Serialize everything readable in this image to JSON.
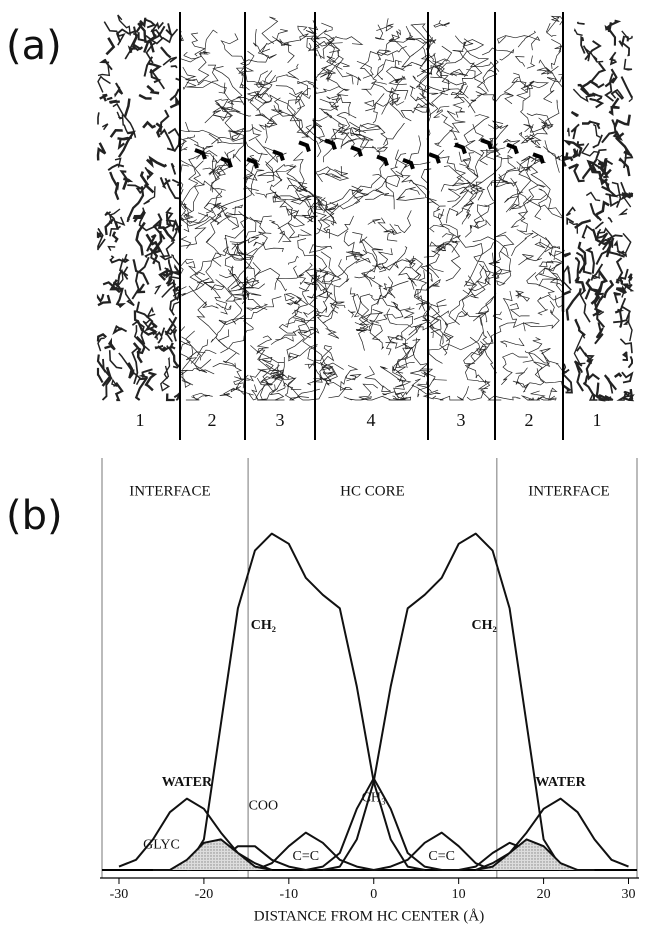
{
  "figure": {
    "panel_label": "(a)",
    "regions": [
      "1",
      "2",
      "3",
      "4",
      "3",
      "2",
      "1"
    ]
  },
  "chart_data": {
    "type": "line",
    "panel_label": "(b)",
    "x_label": "DISTANCE FROM HC CENTER (Å)",
    "annotations": [
      "INTERFACE",
      "HC CORE",
      "INTERFACE"
    ],
    "region_bounds": [
      -14.8,
      14.5
    ],
    "xlim": [
      -32,
      31
    ],
    "xticks": [
      -30,
      -20,
      -10,
      0,
      10,
      20,
      30
    ],
    "ylim": [
      0,
      103
    ],
    "line_color": "#111",
    "series": [
      {
        "name": "CH₂",
        "x": [
          -24,
          -22,
          -20,
          -18,
          -16,
          -14,
          -12,
          -10,
          -8,
          -6,
          -4,
          -2,
          0,
          2,
          4,
          6
        ],
        "values": [
          0,
          1,
          9,
          43,
          77,
          94,
          99,
          96,
          86,
          81,
          77,
          54,
          26,
          9,
          1,
          0
        ]
      },
      {
        "name": "CH₂",
        "x": [
          -6,
          -4,
          -2,
          0,
          2,
          4,
          6,
          8,
          10,
          12,
          14,
          16,
          18,
          20,
          22,
          24
        ],
        "values": [
          0,
          1,
          9,
          26,
          54,
          77,
          81,
          86,
          96,
          99,
          94,
          77,
          43,
          9,
          1,
          0
        ]
      },
      {
        "name": "WATER",
        "x": [
          -30,
          -28,
          -26,
          -24,
          -22,
          -20,
          -18,
          -16,
          -14,
          -12
        ],
        "values": [
          1,
          3,
          9,
          17,
          21,
          18,
          11,
          5,
          2,
          0
        ]
      },
      {
        "name": "WATER",
        "x": [
          12,
          14,
          16,
          18,
          20,
          22,
          24,
          26,
          28,
          30
        ],
        "values": [
          0,
          2,
          5,
          11,
          18,
          21,
          17,
          9,
          3,
          1
        ]
      },
      {
        "name": "CH₃",
        "x": [
          -8,
          -6,
          -4,
          -2,
          0,
          2,
          4,
          6,
          8
        ],
        "values": [
          0,
          1,
          5,
          18,
          27,
          18,
          5,
          1,
          0
        ]
      },
      {
        "name": "C=C",
        "x": [
          -16,
          -14,
          -12,
          -10,
          -8,
          -6,
          -4,
          -2,
          0
        ],
        "values": [
          0,
          0,
          2,
          7,
          11,
          8,
          3,
          1,
          0
        ]
      },
      {
        "name": "C=C",
        "x": [
          0,
          2,
          4,
          6,
          8,
          10,
          12,
          14,
          16
        ],
        "values": [
          0,
          1,
          3,
          8,
          11,
          7,
          2,
          0,
          0
        ]
      },
      {
        "name": "COO",
        "x": [
          -22,
          -20,
          -18,
          -16,
          -14,
          -12,
          -10,
          -8
        ],
        "values": [
          0,
          1,
          3,
          7,
          7,
          3,
          1,
          0
        ]
      },
      {
        "x": [
          8,
          10,
          12,
          14,
          16,
          18,
          20,
          22
        ],
        "values": [
          0,
          0,
          1,
          5,
          8,
          6,
          2,
          0
        ]
      },
      {
        "name": "GLYC",
        "fill": "hatch",
        "x": [
          -26,
          -24,
          -22,
          -20,
          -18,
          -16,
          -14,
          -12
        ],
        "values": [
          0,
          0,
          3,
          8,
          9,
          5,
          1,
          0
        ]
      },
      {
        "fill": "hatch",
        "x": [
          12,
          14,
          16,
          18,
          20,
          22,
          24,
          26
        ],
        "values": [
          0,
          1,
          5,
          9,
          7,
          2,
          0,
          0
        ]
      }
    ]
  }
}
